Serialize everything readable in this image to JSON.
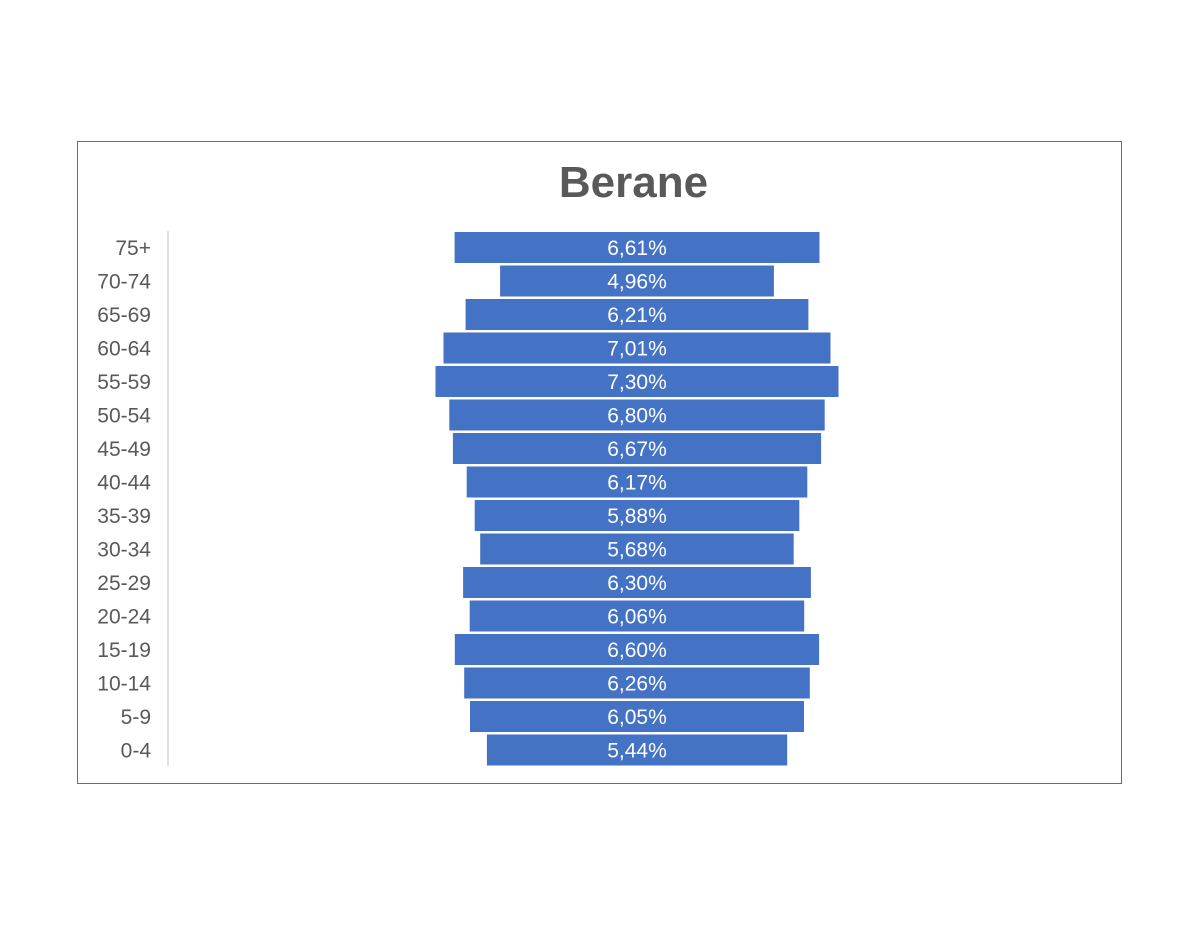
{
  "chart_data": {
    "type": "bar",
    "orientation": "horizontal-centered",
    "title": "Berane",
    "categories": [
      "75+",
      "70-74",
      "65-69",
      "60-64",
      "55-59",
      "50-54",
      "45-49",
      "40-44",
      "35-39",
      "30-34",
      "25-29",
      "20-24",
      "15-19",
      "10-14",
      "5-9",
      "0-4"
    ],
    "values": [
      6.61,
      4.96,
      6.21,
      7.01,
      7.3,
      6.8,
      6.67,
      6.17,
      5.88,
      5.68,
      6.3,
      6.06,
      6.6,
      6.26,
      6.05,
      5.44
    ],
    "data_labels": [
      "6,61%",
      "4,96%",
      "6,21%",
      "7,01%",
      "7,30%",
      "6,80%",
      "6,67%",
      "6,17%",
      "5,88%",
      "5,68%",
      "6,30%",
      "6,06%",
      "6,60%",
      "6,26%",
      "6,05%",
      "5,44%"
    ],
    "xlabel": "",
    "ylabel": "",
    "grid": false,
    "legend": "none",
    "bar_color": "#4472C4"
  }
}
